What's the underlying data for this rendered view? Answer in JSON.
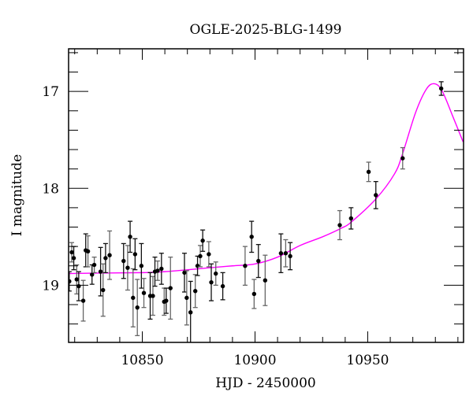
{
  "chart_data": {
    "type": "scatter",
    "title": "OGLE-2025-BLG-1499",
    "xlabel": "HJD - 2450000",
    "ylabel": "I magnitude",
    "xlim": [
      10817.3,
      10992.5
    ],
    "ylim": [
      19.59,
      16.56
    ],
    "y_inverted": true,
    "x_ticks": [
      10850,
      10900,
      10950
    ],
    "x_tick_labels": [
      "10850",
      "10900",
      "10950"
    ],
    "x_minor_step": 10,
    "y_ticks": [
      17,
      18,
      19
    ],
    "y_tick_labels": [
      "17",
      "18",
      "19"
    ],
    "y_minor_step": 0.2,
    "grid": false,
    "colors": {
      "points": "#000000",
      "errorbars": "#333333",
      "model": "#ff00ff"
    },
    "series": [
      {
        "kind": "points-with-errorbars",
        "x": [
          10817.6,
          10818.7,
          10819.6,
          10820.9,
          10821.8,
          10823.8,
          10824.9,
          10825.9,
          10827.7,
          10828.7,
          10831.5,
          10832.6,
          10833.7,
          10835.5,
          10841.7,
          10843.5,
          10844.6,
          10845.9,
          10846.8,
          10847.8,
          10849.6,
          10850.7,
          10853.5,
          10854.7,
          10855.6,
          10856.8,
          10858.5,
          10859.7,
          10860.6,
          10862.5,
          10868.7,
          10869.7,
          10871.4,
          10873.5,
          10874.5,
          10875.7,
          10876.8,
          10879.5,
          10880.6,
          10882.6,
          10885.7,
          10895.6,
          10898.5,
          10899.6,
          10901.5,
          10904.5,
          10911.5,
          10913.6,
          10915.6,
          10937.6,
          10942.6,
          10950.4,
          10953.6,
          10965.5,
          10982.6
        ],
        "y": [
          18.96,
          18.66,
          18.72,
          18.94,
          19.01,
          19.16,
          18.64,
          18.65,
          18.89,
          18.79,
          18.86,
          19.05,
          18.72,
          18.69,
          18.75,
          18.82,
          18.5,
          19.13,
          18.68,
          19.23,
          18.8,
          19.08,
          19.11,
          19.11,
          18.86,
          18.85,
          18.83,
          19.17,
          19.16,
          19.03,
          18.87,
          19.13,
          19.28,
          19.06,
          18.8,
          18.7,
          18.54,
          18.68,
          18.97,
          18.88,
          19.01,
          18.8,
          18.5,
          19.09,
          18.75,
          18.95,
          18.67,
          18.67,
          18.7,
          18.38,
          18.31,
          17.83,
          18.07,
          17.69,
          16.97
        ],
        "yerr": [
          0.1,
          0.1,
          0.12,
          0.15,
          0.15,
          0.21,
          0.17,
          0.16,
          0.1,
          0.08,
          0.25,
          0.27,
          0.15,
          0.25,
          0.18,
          0.23,
          0.16,
          0.3,
          0.16,
          0.29,
          0.23,
          0.15,
          0.24,
          0.2,
          0.15,
          0.1,
          0.16,
          0.14,
          0.13,
          0.32,
          0.2,
          0.28,
          0.32,
          0.17,
          0.1,
          0.11,
          0.11,
          0.13,
          0.19,
          0.12,
          0.14,
          0.2,
          0.16,
          0.15,
          0.17,
          0.26,
          0.2,
          0.14,
          0.14,
          0.15,
          0.11,
          0.1,
          0.14,
          0.11,
          0.07
        ]
      },
      {
        "kind": "model-curve",
        "x": [
          10817.3,
          10830,
          10850,
          10860,
          10880,
          10890,
          10900,
          10910,
          10920,
          10930,
          10938.4,
          10942.6,
          10953.6,
          10961.9,
          10965.5,
          10971.2,
          10975.9,
          10979.4,
          10982.9,
          10987.6,
          10992.3
        ],
        "y": [
          18.88,
          18.875,
          18.87,
          18.86,
          18.82,
          18.8,
          18.78,
          18.71,
          18.59,
          18.5,
          18.41,
          18.35,
          18.11,
          17.85,
          17.64,
          17.22,
          16.98,
          16.92,
          16.99,
          17.25,
          17.52
        ]
      }
    ]
  }
}
